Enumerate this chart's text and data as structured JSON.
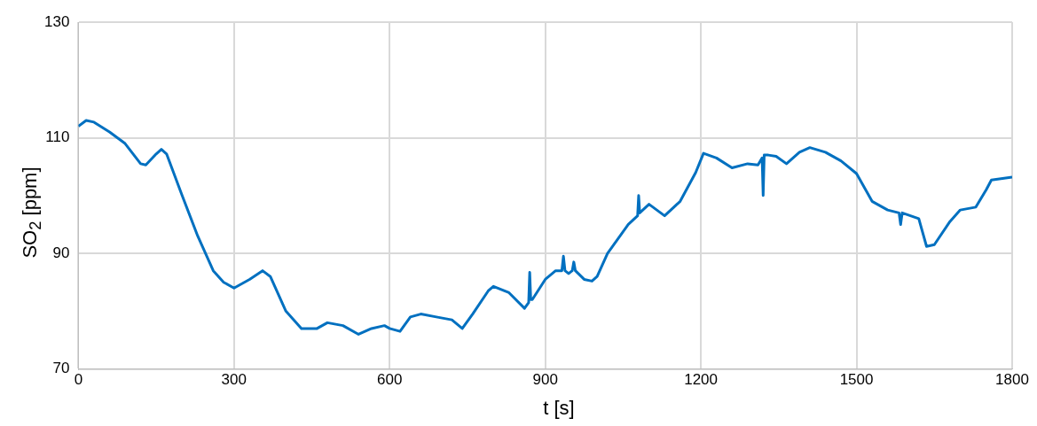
{
  "chart_data": {
    "type": "line",
    "xlabel": "t [s]",
    "ylabel": "SO$_{2}$ [ppm]",
    "xlim": [
      0,
      1800
    ],
    "xticks": [
      0,
      300,
      600,
      900,
      1200,
      1500,
      1800
    ],
    "ylim": [
      70,
      130
    ],
    "yticks": [
      70,
      90,
      110,
      130
    ],
    "grid": true,
    "legend": false,
    "marker": "none",
    "line_style": "solid",
    "series": [
      {
        "color": "#0070c0",
        "x": [
          0,
          15,
          30,
          60,
          90,
          120,
          130,
          150,
          160,
          170,
          200,
          230,
          260,
          280,
          300,
          330,
          355,
          370,
          400,
          430,
          460,
          480,
          510,
          540,
          565,
          590,
          600,
          620,
          640,
          660,
          690,
          720,
          740,
          760,
          790,
          800,
          830,
          860,
          868,
          870,
          872,
          875,
          900,
          920,
          932,
          935,
          938,
          945,
          952,
          955,
          958,
          975,
          990,
          1000,
          1020,
          1060,
          1078,
          1080,
          1082,
          1100,
          1130,
          1160,
          1190,
          1205,
          1230,
          1260,
          1290,
          1310,
          1318,
          1320,
          1322,
          1330,
          1345,
          1365,
          1390,
          1410,
          1440,
          1470,
          1500,
          1530,
          1560,
          1582,
          1585,
          1588,
          1620,
          1635,
          1650,
          1680,
          1700,
          1730,
          1750,
          1760,
          1800
        ],
        "values": [
          112,
          113,
          112.7,
          111,
          109,
          105.5,
          105.3,
          107.2,
          108,
          107.2,
          100,
          93,
          87,
          85,
          84,
          85.5,
          87,
          86,
          80,
          77,
          77,
          78,
          77.5,
          76,
          77,
          77.5,
          77,
          76.5,
          79,
          79.5,
          79,
          78.5,
          77,
          79.5,
          83.5,
          84.3,
          83.2,
          80.5,
          81.5,
          86.7,
          82,
          82,
          85.5,
          87,
          87,
          89.5,
          87,
          86.5,
          87,
          88.5,
          87,
          85.5,
          85.2,
          86,
          90,
          95,
          96.5,
          100,
          97,
          98.5,
          96.5,
          99,
          104,
          107.3,
          106.5,
          104.8,
          105.5,
          105.3,
          106.5,
          100,
          107,
          107,
          106.8,
          105.5,
          107.5,
          108.3,
          107.5,
          106,
          103.8,
          99,
          97.5,
          97,
          95,
          97,
          96,
          91.2,
          91.5,
          95.5,
          97.5,
          98,
          101,
          102.7,
          103.2
        ]
      }
    ]
  }
}
